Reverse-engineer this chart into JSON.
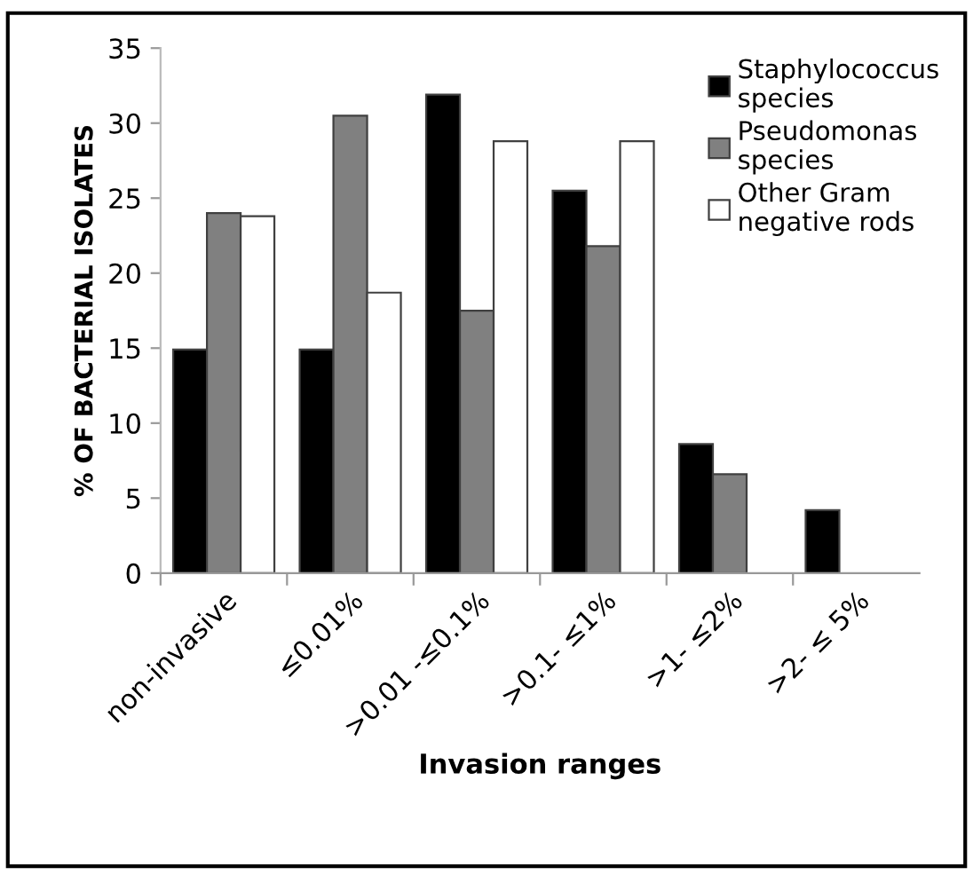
{
  "chart_data": {
    "type": "bar",
    "xlabel": "Invasion ranges",
    "ylabel": "% OF BACTERIAL ISOLATES",
    "categories": [
      "non-invasive",
      "≤0.01%",
      ">0.01 -≤0.1%",
      ">0.1- ≤1%",
      ">1- ≤2%",
      ">2- ≤ 5%"
    ],
    "series": [
      {
        "name": "Staphylococcus species",
        "color": "#000000",
        "values": [
          14.9,
          14.9,
          31.9,
          25.5,
          8.6,
          4.2
        ]
      },
      {
        "name": "Pseudomonas species",
        "color": "#808080",
        "values": [
          24.0,
          30.5,
          17.5,
          21.8,
          6.6,
          null
        ]
      },
      {
        "name": "Other Gram negative rods",
        "color": "#ffffff",
        "values": [
          23.8,
          18.7,
          28.8,
          28.8,
          null,
          null
        ]
      }
    ],
    "ylim": [
      0,
      35
    ],
    "yticks": [
      0,
      5,
      10,
      15,
      20,
      25,
      30,
      35
    ],
    "grid": false,
    "legend": "top right"
  }
}
